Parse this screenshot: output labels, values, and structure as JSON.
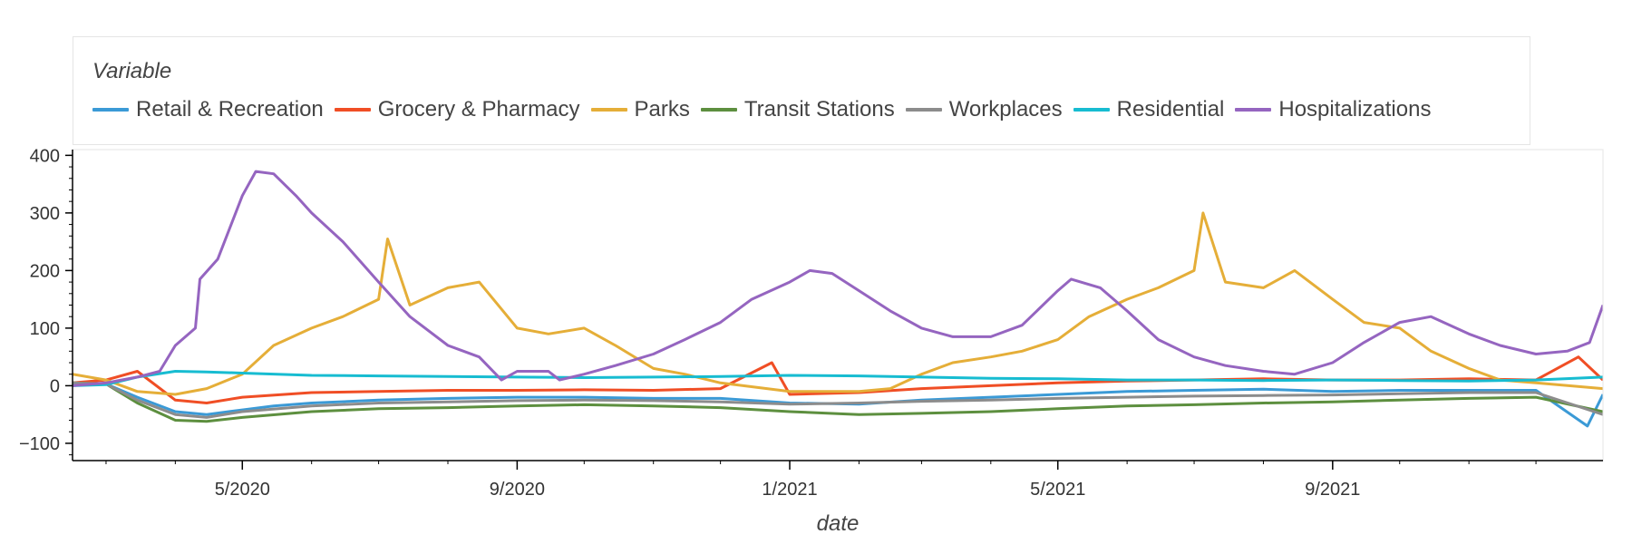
{
  "chart_data": {
    "type": "line",
    "xlabel": "date",
    "ylabel": "",
    "legend_title": "Variable",
    "legend_placement": "top",
    "x_range": [
      "2020-02-15",
      "2021-12-31"
    ],
    "ylim": [
      -130,
      410
    ],
    "y_ticks": [
      -100,
      0,
      100,
      200,
      300,
      400
    ],
    "x_ticks": [
      {
        "date": "2020-05-01",
        "label": "5/2020"
      },
      {
        "date": "2020-09-01",
        "label": "9/2020"
      },
      {
        "date": "2021-01-01",
        "label": "1/2021"
      },
      {
        "date": "2021-05-01",
        "label": "5/2021"
      },
      {
        "date": "2021-09-01",
        "label": "9/2021"
      }
    ],
    "grid": false,
    "series": [
      {
        "name": "Retail & Recreation",
        "color": "#3b9ad6",
        "points": [
          [
            "2020-02-15",
            5
          ],
          [
            "2020-03-01",
            3
          ],
          [
            "2020-03-15",
            -20
          ],
          [
            "2020-04-01",
            -45
          ],
          [
            "2020-04-15",
            -50
          ],
          [
            "2020-05-01",
            -42
          ],
          [
            "2020-05-15",
            -35
          ],
          [
            "2020-06-01",
            -30
          ],
          [
            "2020-07-01",
            -25
          ],
          [
            "2020-08-01",
            -22
          ],
          [
            "2020-09-01",
            -20
          ],
          [
            "2020-10-01",
            -20
          ],
          [
            "2020-11-01",
            -22
          ],
          [
            "2020-12-01",
            -22
          ],
          [
            "2021-01-01",
            -30
          ],
          [
            "2021-02-01",
            -32
          ],
          [
            "2021-03-01",
            -25
          ],
          [
            "2021-04-01",
            -20
          ],
          [
            "2021-05-01",
            -15
          ],
          [
            "2021-06-01",
            -10
          ],
          [
            "2021-07-01",
            -8
          ],
          [
            "2021-08-01",
            -6
          ],
          [
            "2021-09-01",
            -10
          ],
          [
            "2021-10-01",
            -8
          ],
          [
            "2021-11-01",
            -8
          ],
          [
            "2021-12-01",
            -8
          ],
          [
            "2021-12-24",
            -70
          ],
          [
            "2021-12-31",
            -15
          ]
        ]
      },
      {
        "name": "Grocery & Pharmacy",
        "color": "#f04e25",
        "points": [
          [
            "2020-02-15",
            5
          ],
          [
            "2020-03-01",
            10
          ],
          [
            "2020-03-15",
            25
          ],
          [
            "2020-04-01",
            -25
          ],
          [
            "2020-04-15",
            -30
          ],
          [
            "2020-05-01",
            -20
          ],
          [
            "2020-06-01",
            -12
          ],
          [
            "2020-07-01",
            -10
          ],
          [
            "2020-08-01",
            -8
          ],
          [
            "2020-09-01",
            -8
          ],
          [
            "2020-10-01",
            -7
          ],
          [
            "2020-11-01",
            -8
          ],
          [
            "2020-12-01",
            -5
          ],
          [
            "2020-12-24",
            40
          ],
          [
            "2021-01-01",
            -15
          ],
          [
            "2021-02-01",
            -12
          ],
          [
            "2021-03-01",
            -5
          ],
          [
            "2021-04-01",
            0
          ],
          [
            "2021-05-01",
            5
          ],
          [
            "2021-06-01",
            8
          ],
          [
            "2021-07-01",
            10
          ],
          [
            "2021-08-01",
            12
          ],
          [
            "2021-09-01",
            10
          ],
          [
            "2021-10-01",
            10
          ],
          [
            "2021-11-01",
            12
          ],
          [
            "2021-12-01",
            10
          ],
          [
            "2021-12-20",
            50
          ],
          [
            "2021-12-31",
            10
          ]
        ]
      },
      {
        "name": "Parks",
        "color": "#e5ae38",
        "points": [
          [
            "2020-02-15",
            20
          ],
          [
            "2020-03-01",
            10
          ],
          [
            "2020-03-15",
            -10
          ],
          [
            "2020-04-01",
            -15
          ],
          [
            "2020-04-15",
            -5
          ],
          [
            "2020-05-01",
            20
          ],
          [
            "2020-05-15",
            70
          ],
          [
            "2020-06-01",
            100
          ],
          [
            "2020-06-15",
            120
          ],
          [
            "2020-07-01",
            150
          ],
          [
            "2020-07-05",
            255
          ],
          [
            "2020-07-15",
            140
          ],
          [
            "2020-08-01",
            170
          ],
          [
            "2020-08-15",
            180
          ],
          [
            "2020-09-01",
            100
          ],
          [
            "2020-09-15",
            90
          ],
          [
            "2020-10-01",
            100
          ],
          [
            "2020-10-15",
            70
          ],
          [
            "2020-11-01",
            30
          ],
          [
            "2020-11-15",
            20
          ],
          [
            "2020-12-01",
            5
          ],
          [
            "2021-01-01",
            -10
          ],
          [
            "2021-02-01",
            -10
          ],
          [
            "2021-02-15",
            -5
          ],
          [
            "2021-03-01",
            20
          ],
          [
            "2021-03-15",
            40
          ],
          [
            "2021-04-01",
            50
          ],
          [
            "2021-04-15",
            60
          ],
          [
            "2021-05-01",
            80
          ],
          [
            "2021-05-15",
            120
          ],
          [
            "2021-06-01",
            150
          ],
          [
            "2021-06-15",
            170
          ],
          [
            "2021-07-01",
            200
          ],
          [
            "2021-07-05",
            300
          ],
          [
            "2021-07-15",
            180
          ],
          [
            "2021-08-01",
            170
          ],
          [
            "2021-08-15",
            200
          ],
          [
            "2021-09-01",
            150
          ],
          [
            "2021-09-15",
            110
          ],
          [
            "2021-10-01",
            100
          ],
          [
            "2021-10-15",
            60
          ],
          [
            "2021-11-01",
            30
          ],
          [
            "2021-11-15",
            10
          ],
          [
            "2021-12-01",
            5
          ],
          [
            "2021-12-31",
            -5
          ]
        ]
      },
      {
        "name": "Transit Stations",
        "color": "#5d8f3f",
        "points": [
          [
            "2020-02-15",
            5
          ],
          [
            "2020-03-01",
            3
          ],
          [
            "2020-03-15",
            -30
          ],
          [
            "2020-04-01",
            -60
          ],
          [
            "2020-04-15",
            -62
          ],
          [
            "2020-05-01",
            -55
          ],
          [
            "2020-06-01",
            -45
          ],
          [
            "2020-07-01",
            -40
          ],
          [
            "2020-08-01",
            -38
          ],
          [
            "2020-09-01",
            -35
          ],
          [
            "2020-10-01",
            -33
          ],
          [
            "2020-11-01",
            -35
          ],
          [
            "2020-12-01",
            -38
          ],
          [
            "2021-01-01",
            -45
          ],
          [
            "2021-02-01",
            -50
          ],
          [
            "2021-03-01",
            -48
          ],
          [
            "2021-04-01",
            -45
          ],
          [
            "2021-05-01",
            -40
          ],
          [
            "2021-06-01",
            -35
          ],
          [
            "2021-07-01",
            -33
          ],
          [
            "2021-08-01",
            -30
          ],
          [
            "2021-09-01",
            -28
          ],
          [
            "2021-10-01",
            -25
          ],
          [
            "2021-11-01",
            -22
          ],
          [
            "2021-12-01",
            -20
          ],
          [
            "2021-12-31",
            -45
          ]
        ]
      },
      {
        "name": "Workplaces",
        "color": "#8c8c8c",
        "points": [
          [
            "2020-02-15",
            5
          ],
          [
            "2020-03-01",
            3
          ],
          [
            "2020-03-15",
            -25
          ],
          [
            "2020-04-01",
            -50
          ],
          [
            "2020-04-15",
            -55
          ],
          [
            "2020-05-01",
            -45
          ],
          [
            "2020-06-01",
            -35
          ],
          [
            "2020-07-01",
            -30
          ],
          [
            "2020-08-01",
            -28
          ],
          [
            "2020-09-01",
            -26
          ],
          [
            "2020-10-01",
            -25
          ],
          [
            "2020-11-01",
            -26
          ],
          [
            "2020-12-01",
            -28
          ],
          [
            "2021-01-01",
            -32
          ],
          [
            "2021-02-01",
            -30
          ],
          [
            "2021-03-01",
            -27
          ],
          [
            "2021-04-01",
            -25
          ],
          [
            "2021-05-01",
            -22
          ],
          [
            "2021-06-01",
            -20
          ],
          [
            "2021-07-01",
            -18
          ],
          [
            "2021-08-01",
            -17
          ],
          [
            "2021-09-01",
            -16
          ],
          [
            "2021-10-01",
            -14
          ],
          [
            "2021-11-01",
            -12
          ],
          [
            "2021-12-01",
            -12
          ],
          [
            "2021-12-31",
            -50
          ]
        ]
      },
      {
        "name": "Residential",
        "color": "#17bcd1",
        "points": [
          [
            "2020-02-15",
            0
          ],
          [
            "2020-03-01",
            2
          ],
          [
            "2020-03-15",
            15
          ],
          [
            "2020-04-01",
            25
          ],
          [
            "2020-04-15",
            24
          ],
          [
            "2020-05-01",
            22
          ],
          [
            "2020-06-01",
            18
          ],
          [
            "2020-07-01",
            17
          ],
          [
            "2020-08-01",
            16
          ],
          [
            "2020-09-01",
            15
          ],
          [
            "2020-10-01",
            14
          ],
          [
            "2020-11-01",
            15
          ],
          [
            "2020-12-01",
            16
          ],
          [
            "2021-01-01",
            18
          ],
          [
            "2021-02-01",
            17
          ],
          [
            "2021-03-01",
            15
          ],
          [
            "2021-04-01",
            13
          ],
          [
            "2021-05-01",
            12
          ],
          [
            "2021-06-01",
            10
          ],
          [
            "2021-07-01",
            10
          ],
          [
            "2021-08-01",
            9
          ],
          [
            "2021-09-01",
            10
          ],
          [
            "2021-10-01",
            9
          ],
          [
            "2021-11-01",
            8
          ],
          [
            "2021-12-01",
            10
          ],
          [
            "2021-12-31",
            15
          ]
        ]
      },
      {
        "name": "Hospitalizations",
        "color": "#9565c0",
        "points": [
          [
            "2020-02-15",
            0
          ],
          [
            "2020-03-01",
            5
          ],
          [
            "2020-03-15",
            15
          ],
          [
            "2020-03-25",
            25
          ],
          [
            "2020-04-01",
            70
          ],
          [
            "2020-04-10",
            100
          ],
          [
            "2020-04-12",
            185
          ],
          [
            "2020-04-20",
            220
          ],
          [
            "2020-05-01",
            330
          ],
          [
            "2020-05-07",
            372
          ],
          [
            "2020-05-15",
            368
          ],
          [
            "2020-05-25",
            330
          ],
          [
            "2020-06-01",
            300
          ],
          [
            "2020-06-15",
            250
          ],
          [
            "2020-07-01",
            180
          ],
          [
            "2020-07-15",
            120
          ],
          [
            "2020-08-01",
            70
          ],
          [
            "2020-08-15",
            50
          ],
          [
            "2020-08-25",
            10
          ],
          [
            "2020-09-01",
            25
          ],
          [
            "2020-09-15",
            25
          ],
          [
            "2020-09-20",
            10
          ],
          [
            "2020-10-01",
            20
          ],
          [
            "2020-10-15",
            35
          ],
          [
            "2020-11-01",
            55
          ],
          [
            "2020-11-15",
            80
          ],
          [
            "2020-12-01",
            110
          ],
          [
            "2020-12-15",
            150
          ],
          [
            "2021-01-01",
            180
          ],
          [
            "2021-01-10",
            200
          ],
          [
            "2021-01-20",
            195
          ],
          [
            "2021-02-01",
            165
          ],
          [
            "2021-02-15",
            130
          ],
          [
            "2021-03-01",
            100
          ],
          [
            "2021-03-15",
            85
          ],
          [
            "2021-04-01",
            85
          ],
          [
            "2021-04-15",
            105
          ],
          [
            "2021-05-01",
            165
          ],
          [
            "2021-05-07",
            185
          ],
          [
            "2021-05-20",
            170
          ],
          [
            "2021-06-01",
            130
          ],
          [
            "2021-06-15",
            80
          ],
          [
            "2021-07-01",
            50
          ],
          [
            "2021-07-15",
            35
          ],
          [
            "2021-08-01",
            25
          ],
          [
            "2021-08-15",
            20
          ],
          [
            "2021-09-01",
            40
          ],
          [
            "2021-09-15",
            75
          ],
          [
            "2021-10-01",
            110
          ],
          [
            "2021-10-15",
            120
          ],
          [
            "2021-11-01",
            90
          ],
          [
            "2021-11-15",
            70
          ],
          [
            "2021-12-01",
            55
          ],
          [
            "2021-12-15",
            60
          ],
          [
            "2021-12-25",
            75
          ],
          [
            "2021-12-31",
            140
          ]
        ]
      }
    ]
  }
}
